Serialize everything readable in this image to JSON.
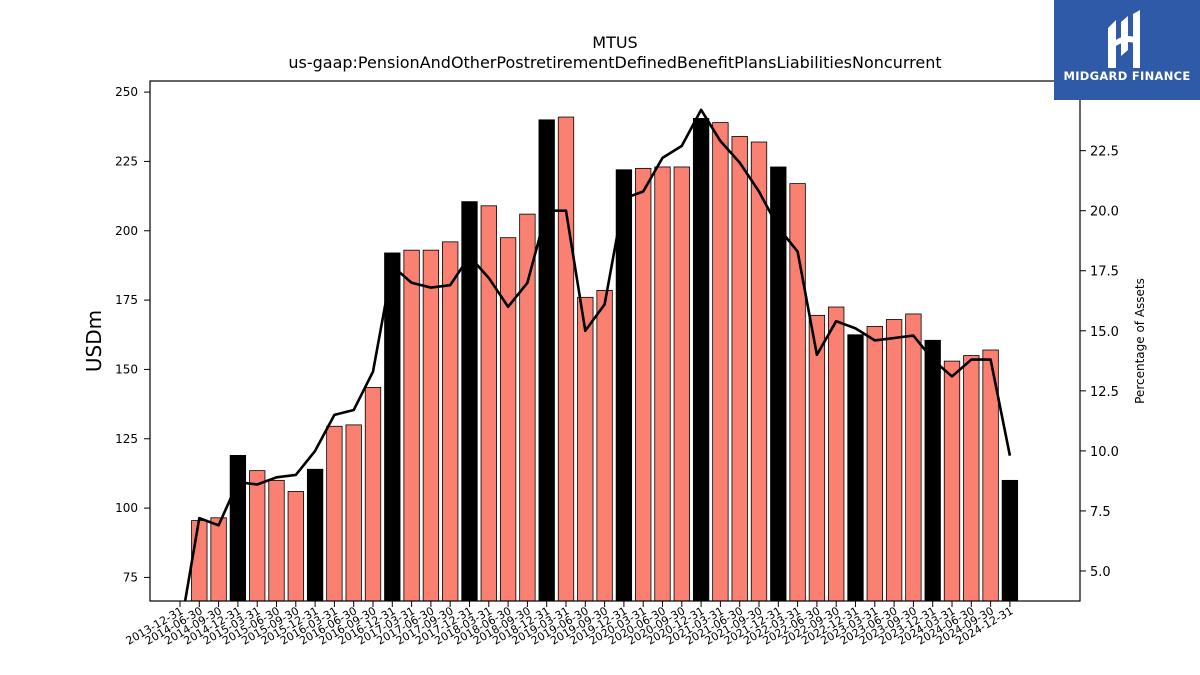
{
  "chart_data": {
    "type": "bar",
    "title": "MTUS",
    "subtitle": "us-gaap:PensionAndOtherPostretirementDefinedBenefitPlansLiabilitiesNoncurrent",
    "ylabel": "USDm",
    "y2label": "Percentage of Assets",
    "ylim": [
      66.5,
      254
    ],
    "y2lim": [
      3.75,
      25.4
    ],
    "yticks": [
      75,
      100,
      125,
      150,
      175,
      200,
      225,
      250
    ],
    "y2ticks": [
      "5.0",
      "7.5",
      "10.0",
      "12.5",
      "15.0",
      "17.5",
      "20.0",
      "22.5"
    ],
    "colors": {
      "quarter": "#fa8072",
      "year_end": "#000000",
      "line": "#000000"
    },
    "categories": [
      "2013-12-31",
      "2014-06-30",
      "2014-09-30",
      "2014-12-31",
      "2015-03-31",
      "2015-06-30",
      "2015-09-30",
      "2015-12-31",
      "2016-03-31",
      "2016-06-30",
      "2016-09-30",
      "2016-12-31",
      "2017-03-31",
      "2017-06-30",
      "2017-09-30",
      "2017-12-31",
      "2018-03-31",
      "2018-06-30",
      "2018-09-30",
      "2018-12-31",
      "2019-03-31",
      "2019-06-30",
      "2019-09-30",
      "2019-12-31",
      "2020-03-31",
      "2020-06-30",
      "2020-09-30",
      "2020-12-31",
      "2021-03-31",
      "2021-06-30",
      "2021-09-30",
      "2021-12-31",
      "2022-03-31",
      "2022-06-30",
      "2022-09-30",
      "2022-12-31",
      "2023-03-31",
      "2023-06-30",
      "2023-09-30",
      "2023-12-31",
      "2024-03-31",
      "2024-06-30",
      "2024-09-30",
      "2024-12-31"
    ],
    "series": [
      {
        "values": [
          null,
          95.5,
          96.5,
          119,
          113.5,
          110,
          106,
          114,
          129.5,
          130,
          143.5,
          192,
          193,
          193,
          196,
          210.5,
          209,
          197.5,
          206,
          240,
          241,
          176,
          178.5,
          222,
          222.5,
          223,
          223,
          240.5,
          239,
          234,
          232,
          223,
          217,
          169.5,
          172.5,
          162.5,
          165.5,
          168,
          170,
          160.5,
          153,
          155,
          157,
          110
        ]
      },
      {
        "values": [
          2.5,
          7.2,
          6.9,
          8.7,
          8.6,
          8.9,
          9.0,
          10.0,
          11.5,
          11.7,
          13.3,
          17.7,
          17.0,
          16.8,
          16.9,
          18.1,
          17.2,
          16.0,
          17.0,
          20.0,
          20.0,
          15.0,
          16.1,
          20.5,
          20.8,
          22.2,
          22.7,
          24.2,
          22.9,
          22.0,
          20.8,
          19.3,
          18.3,
          14.0,
          15.4,
          15.1,
          14.6,
          14.7,
          14.8,
          13.8,
          13.1,
          13.8,
          13.8,
          9.8
        ]
      }
    ]
  },
  "brand": {
    "name": "MIDGARD FINANCE"
  }
}
